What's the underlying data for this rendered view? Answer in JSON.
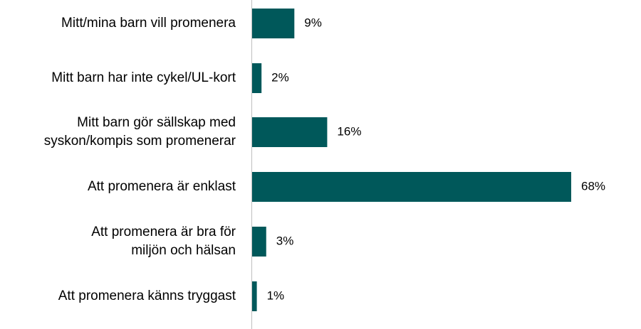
{
  "chart_data": {
    "type": "bar",
    "orientation": "horizontal",
    "categories": [
      [
        "Mitt/mina barn vill promenera"
      ],
      [
        "Mitt barn har inte cykel/UL-kort"
      ],
      [
        "Mitt barn gör sällskap med",
        "syskon/kompis som promenerar"
      ],
      [
        "Att promenera är enklast"
      ],
      [
        "Att promenera är bra för",
        "miljön och hälsan"
      ],
      [
        "Att promenera känns tryggast"
      ]
    ],
    "values": [
      9,
      2,
      16,
      68,
      3,
      1
    ],
    "value_labels": [
      "9%",
      "2%",
      "16%",
      "68%",
      "3%",
      "1%"
    ],
    "title": "",
    "xlabel": "",
    "ylabel": "",
    "grid": false,
    "legend": "none",
    "bar_color": "#00585A",
    "axis_color": "#BFBFBF"
  }
}
